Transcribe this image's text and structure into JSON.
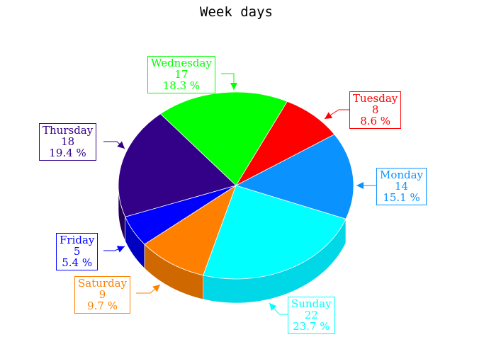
{
  "chart_data": {
    "type": "pie",
    "title": "Week days",
    "percent_suffix": " %",
    "slices": [
      {
        "name": "Monday",
        "value": 14,
        "percent": "15.1",
        "color": "#0a92ff",
        "dark": "#0674d0"
      },
      {
        "name": "Tuesday",
        "value": 8,
        "percent": "8.6",
        "color": "#ff0000",
        "dark": "#c00000"
      },
      {
        "name": "Wednesday",
        "value": 17,
        "percent": "18.3",
        "color": "#00ff00",
        "dark": "#00c000"
      },
      {
        "name": "Thursday",
        "value": 18,
        "percent": "19.4",
        "color": "#330088",
        "dark": "#22005a"
      },
      {
        "name": "Friday",
        "value": 5,
        "percent": "5.4",
        "color": "#0000ff",
        "dark": "#0000c0"
      },
      {
        "name": "Saturday",
        "value": 9,
        "percent": "9.7",
        "color": "#ff8000",
        "dark": "#d06800"
      },
      {
        "name": "Sunday",
        "value": 22,
        "percent": "23.7",
        "color": "#00ffff",
        "dark": "#00d8e8"
      }
    ]
  }
}
